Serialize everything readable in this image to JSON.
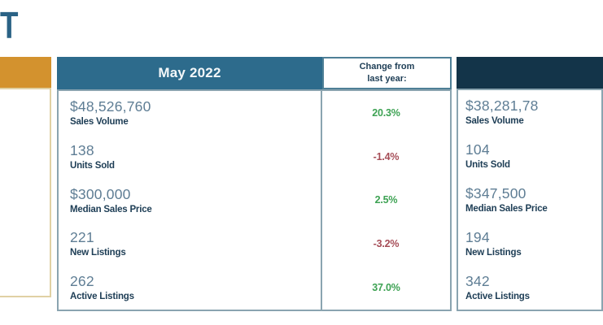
{
  "page": {
    "title_fragment": "T"
  },
  "colors": {
    "title": "#2a6285",
    "left_header_orange": "#d3922e",
    "left_border_gold": "#e0d1a4",
    "month_header_teal": "#2d6b8c",
    "right_header_navy": "#133449",
    "body_border": "#8aa4b0",
    "value_text": "#5e7d94",
    "label_text": "#1d3d55",
    "positive_green": "#3da253",
    "negative_red": "#a64d57"
  },
  "main_table": {
    "month_header": "May 2022",
    "change_header_lines": [
      "Change from",
      "last year:"
    ],
    "rows": [
      {
        "value": "$48,526,760",
        "label": "Sales Volume",
        "change": "20.3%",
        "direction": "up"
      },
      {
        "value": "138",
        "label": "Units Sold",
        "change": "-1.4%",
        "direction": "down"
      },
      {
        "value": "$300,000",
        "label": "Median Sales Price",
        "change": "2.5%",
        "direction": "up"
      },
      {
        "value": "221",
        "label": "New Listings",
        "change": "-3.2%",
        "direction": "down"
      },
      {
        "value": "262",
        "label": "Active Listings",
        "change": "37.0%",
        "direction": "up"
      }
    ]
  },
  "right_table": {
    "rows": [
      {
        "value": "$38,281,78",
        "label": "Sales Volume"
      },
      {
        "value": "104",
        "label": "Units Sold"
      },
      {
        "value": "$347,500",
        "label": "Median Sales Price"
      },
      {
        "value": "194",
        "label": "New Listings"
      },
      {
        "value": "342",
        "label": "Active Listings"
      }
    ]
  }
}
